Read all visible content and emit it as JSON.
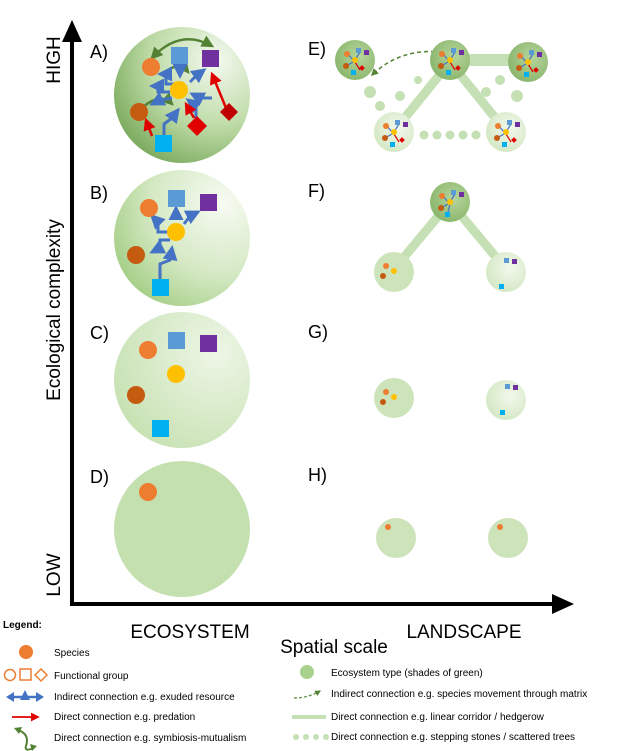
{
  "axes": {
    "y_label": "Ecological complexity",
    "y_high": "HIGH",
    "y_low": "LOW",
    "x_label": "Spatial scale",
    "x_left": "ECOSYSTEM",
    "x_right": "LANDSCAPE"
  },
  "panels": {
    "a": "A)",
    "b": "B)",
    "c": "C)",
    "d": "D)",
    "e": "E)",
    "f": "F)",
    "g": "G)",
    "h": "H)"
  },
  "legend": {
    "title": "Legend:",
    "species": "Species",
    "functional_group": "Functional group",
    "indirect_exuded": "Indirect connection e.g. exuded resource",
    "direct_predation": "Direct connection e.g. predation",
    "direct_symbiosis": "Direct connection e.g. symbiosis-mutualism",
    "ecosystem_type": "Ecosystem type (shades of green)",
    "indirect_movement": "Indirect connection e.g. species movement through matrix",
    "linear_corridor": "Direct connection e.g. linear corridor / hedgerow",
    "stepping_stones": "Direct connection e.g. stepping stones / scattered trees"
  },
  "colors": {
    "orange": "#ED7D31",
    "brown": "#C55A11",
    "yellow": "#FFC000",
    "blue_light": "#5B9BD5",
    "cyan": "#00B0F0",
    "purple": "#7030A0",
    "red": "#E00000",
    "dark_red": "#C00000",
    "arrow_blue": "#4472C4",
    "arrow_green": "#548235",
    "eco_green": "#A9D18E"
  }
}
